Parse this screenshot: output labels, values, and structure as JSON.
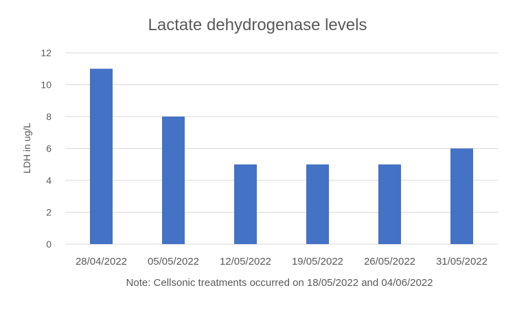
{
  "chart_data": {
    "type": "bar",
    "title": "Lactate dehydrogenase levels",
    "xlabel": "",
    "ylabel": "LDH in ug/L",
    "categories": [
      "28/04/2022",
      "05/05/2022",
      "12/05/2022",
      "19/05/2022",
      "26/05/2022",
      "31/05/2022"
    ],
    "values": [
      11,
      8,
      5,
      5,
      5,
      6
    ],
    "ylim": [
      0,
      12
    ],
    "yticks": [
      0,
      2,
      4,
      6,
      8,
      10,
      12
    ],
    "grid": true,
    "legend": "none",
    "note": "Note:  Cellsonic treatments occurred on 18/05/2022 and 04/06/2022",
    "bar_color": "#4472C4",
    "grid_color": "#D9D9D9"
  }
}
